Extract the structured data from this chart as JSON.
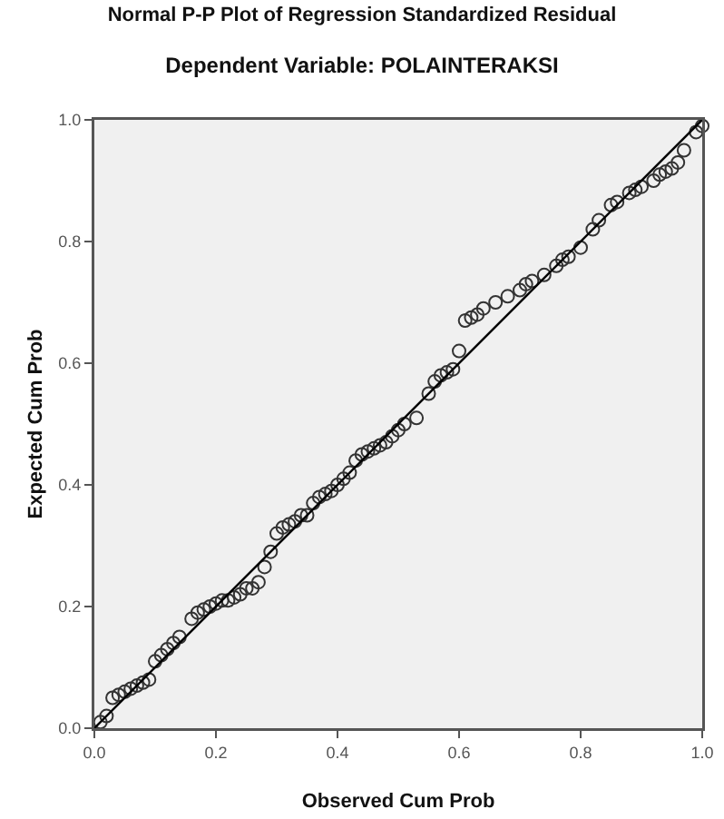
{
  "chart_data": {
    "type": "scatter",
    "title": "Normal P-P Plot of Regression Standardized Residual",
    "subtitle": "Dependent Variable: POLAINTERAKSI",
    "xlabel": "Observed Cum Prob",
    "ylabel": "Expected Cum Prob",
    "marker": "circle",
    "grid": false,
    "xlim": [
      0,
      1
    ],
    "ylim": [
      0,
      1
    ],
    "xticks": [
      {
        "value": 0,
        "label": "0.0"
      },
      0.2,
      0.4,
      0.6,
      0.8,
      {
        "value": 1,
        "label": "1.0"
      }
    ],
    "yticks": [
      {
        "value": 0,
        "label": "0.0"
      },
      0.2,
      0.4,
      0.6,
      0.8,
      {
        "value": 1,
        "label": "1.0"
      }
    ],
    "series": [
      {
        "type": "scatter",
        "color": "#333333",
        "x": [
          0.01,
          0.02,
          0.03,
          0.04,
          0.05,
          0.06,
          0.07,
          0.08,
          0.09,
          0.1,
          0.11,
          0.12,
          0.13,
          0.14,
          0.16,
          0.17,
          0.18,
          0.19,
          0.2,
          0.21,
          0.22,
          0.23,
          0.24,
          0.25,
          0.26,
          0.27,
          0.28,
          0.29,
          0.3,
          0.31,
          0.32,
          0.33,
          0.34,
          0.35,
          0.36,
          0.37,
          0.38,
          0.39,
          0.4,
          0.41,
          0.42,
          0.43,
          0.44,
          0.45,
          0.46,
          0.47,
          0.48,
          0.49,
          0.5,
          0.51,
          0.53,
          0.55,
          0.56,
          0.57,
          0.58,
          0.59,
          0.6,
          0.61,
          0.62,
          0.63,
          0.64,
          0.66,
          0.68,
          0.7,
          0.71,
          0.72,
          0.74,
          0.76,
          0.77,
          0.78,
          0.8,
          0.82,
          0.83,
          0.85,
          0.86,
          0.88,
          0.89,
          0.9,
          0.92,
          0.93,
          0.94,
          0.95,
          0.96,
          0.97,
          0.99,
          1.0
        ],
        "values": [
          0.01,
          0.02,
          0.05,
          0.055,
          0.06,
          0.065,
          0.07,
          0.075,
          0.08,
          0.11,
          0.12,
          0.13,
          0.14,
          0.15,
          0.18,
          0.19,
          0.195,
          0.2,
          0.205,
          0.21,
          0.21,
          0.215,
          0.22,
          0.23,
          0.23,
          0.24,
          0.265,
          0.29,
          0.32,
          0.33,
          0.335,
          0.34,
          0.35,
          0.35,
          0.37,
          0.38,
          0.385,
          0.39,
          0.4,
          0.41,
          0.42,
          0.44,
          0.45,
          0.455,
          0.46,
          0.465,
          0.47,
          0.48,
          0.49,
          0.5,
          0.51,
          0.55,
          0.57,
          0.58,
          0.585,
          0.59,
          0.62,
          0.67,
          0.675,
          0.68,
          0.69,
          0.7,
          0.71,
          0.72,
          0.73,
          0.735,
          0.745,
          0.76,
          0.77,
          0.775,
          0.79,
          0.82,
          0.835,
          0.86,
          0.865,
          0.88,
          0.885,
          0.89,
          0.9,
          0.91,
          0.915,
          0.92,
          0.93,
          0.95,
          0.98,
          0.99
        ]
      },
      {
        "type": "line",
        "color": "#000000",
        "marker": "none",
        "x": [
          0,
          1
        ],
        "values": [
          0,
          1
        ]
      }
    ]
  }
}
